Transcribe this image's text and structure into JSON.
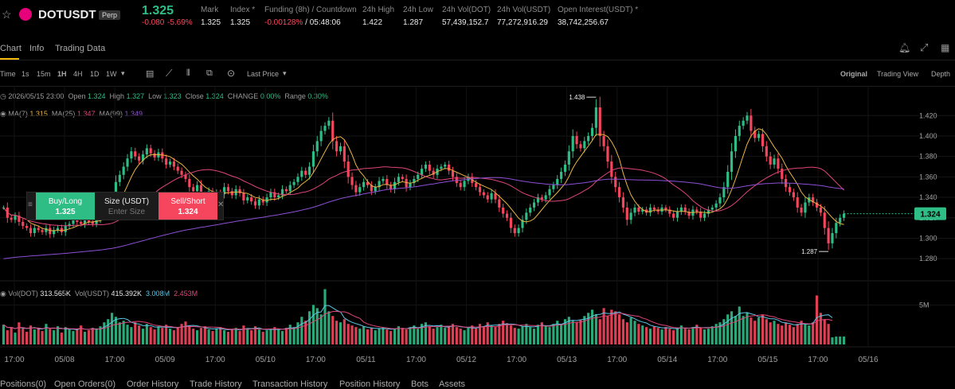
{
  "header": {
    "symbol": "DOTUSDT",
    "badge": "Perp",
    "price": "1.325",
    "change": "-0.080",
    "change_pct": "-5.69%",
    "stats": [
      {
        "label": "Mark",
        "value": "1.325"
      },
      {
        "label": "Index *",
        "value": "1.325"
      },
      {
        "label": "Funding (8h) / Countdown",
        "value": "-0.00128%",
        "value2": " / 05:48:06"
      },
      {
        "label": "24h High",
        "value": "1.422"
      },
      {
        "label": "24h Low",
        "value": "1.287"
      },
      {
        "label": "24h Vol(DOT)",
        "value": "57,439,152.7"
      },
      {
        "label": "24h Vol(USDT)",
        "value": "77,272,916.29"
      },
      {
        "label": "Open Interest(USDT) *",
        "value": "38,742,256.67"
      }
    ]
  },
  "tabs": [
    "Chart",
    "Info",
    "Trading Data"
  ],
  "toolbar": {
    "intervals": [
      "Time",
      "1s",
      "15m",
      "1H",
      "4H",
      "1D",
      "1W"
    ],
    "price_type": "Last Price",
    "views": [
      "Original",
      "Trading View",
      "Depth"
    ]
  },
  "legend": {
    "candle_date": "2026/05/15 23:00",
    "open_label": "Open",
    "open": "1.324",
    "high_label": "High",
    "high": "1.327",
    "low_label": "Low",
    "low": "1.323",
    "close_label": "Close",
    "close": "1.324",
    "change_label": "CHANGE",
    "change": "0.00%",
    "range_label": "Range",
    "range": "0.30%",
    "ma7_label": "MA(7)",
    "ma7": "1.315",
    "ma25_label": "MA(25)",
    "ma25": "1.347",
    "ma99_label": "MA(99)",
    "ma99": "1.349",
    "vol_dot_label": "Vol(DOT)",
    "vol_dot": "313.565K",
    "vol_usdt_label": "Vol(USDT)",
    "vol_usdt": "415.392K",
    "vol_ma1": "3.008M",
    "vol_ma2": "2.453M"
  },
  "trade_panel": {
    "buy_label": "Buy/Long",
    "buy_price": "1.325",
    "size_label": "Size (USDT)",
    "size_placeholder": "Enter Size",
    "sell_label": "Sell/Short",
    "sell_price": "1.324"
  },
  "bottom_tabs": [
    "Positions(0)",
    "Open Orders(0)",
    "Order History",
    "Trade History",
    "Transaction History",
    "Position History",
    "Bots",
    "Assets"
  ],
  "colors": {
    "up": "#2ebd85",
    "down": "#f6465d",
    "ma7": "#e8b443",
    "ma25": "#e0457b",
    "ma99": "#8e4fd6",
    "vol_ma1": "#5bc8e6",
    "vol_ma2": "#e0457b"
  },
  "chart_data": {
    "type": "candlestick",
    "interval": "1H",
    "price_axis": {
      "ticks": [
        "1.420",
        "1.400",
        "1.380",
        "1.360",
        "1.340",
        "1.320",
        "1.300",
        "1.280"
      ],
      "ylim": [
        1.27,
        1.435
      ]
    },
    "volume_axis": {
      "ticks": [
        "5M"
      ]
    },
    "x_ticks": [
      "17:00",
      "05/08",
      "17:00",
      "05/09",
      "17:00",
      "05/10",
      "17:00",
      "05/11",
      "17:00",
      "05/12",
      "17:00",
      "05/13",
      "17:00",
      "05/14",
      "17:00",
      "05/15",
      "17:00",
      "05/16"
    ],
    "last_price": "1.324",
    "annotations": [
      {
        "text": "1.438",
        "kind": "high"
      },
      {
        "text": "1.287",
        "kind": "low"
      }
    ],
    "close_series": [
      1.33,
      1.32,
      1.318,
      1.322,
      1.316,
      1.312,
      1.31,
      1.305,
      1.31,
      1.308,
      1.306,
      1.31,
      1.304,
      1.308,
      1.31,
      1.306,
      1.312,
      1.314,
      1.318,
      1.316,
      1.314,
      1.32,
      1.316,
      1.314,
      1.318,
      1.322,
      1.326,
      1.33,
      1.34,
      1.355,
      1.362,
      1.37,
      1.378,
      1.385,
      1.38,
      1.376,
      1.382,
      1.388,
      1.383,
      1.379,
      1.384,
      1.378,
      1.372,
      1.375,
      1.37,
      1.366,
      1.362,
      1.358,
      1.35,
      1.346,
      1.352,
      1.343,
      1.34,
      1.346,
      1.342,
      1.345,
      1.343,
      1.35,
      1.346,
      1.342,
      1.348,
      1.344,
      1.337,
      1.34,
      1.336,
      1.332,
      1.338,
      1.335,
      1.34,
      1.345,
      1.34,
      1.342,
      1.348,
      1.346,
      1.352,
      1.355,
      1.36,
      1.366,
      1.362,
      1.37,
      1.385,
      1.395,
      1.405,
      1.41,
      1.415,
      1.395,
      1.385,
      1.39,
      1.375,
      1.36,
      1.352,
      1.345,
      1.35,
      1.355,
      1.352,
      1.346,
      1.35,
      1.356,
      1.358,
      1.352,
      1.348,
      1.355,
      1.36,
      1.358,
      1.35,
      1.354,
      1.358,
      1.362,
      1.368,
      1.372,
      1.366,
      1.362,
      1.368,
      1.37,
      1.372,
      1.366,
      1.36,
      1.354,
      1.35,
      1.356,
      1.36,
      1.354,
      1.35,
      1.345,
      1.342,
      1.338,
      1.344,
      1.338,
      1.33,
      1.324,
      1.32,
      1.31,
      1.305,
      1.31,
      1.318,
      1.325,
      1.33,
      1.335,
      1.34,
      1.338,
      1.342,
      1.348,
      1.352,
      1.358,
      1.365,
      1.372,
      1.385,
      1.4,
      1.392,
      1.388,
      1.395,
      1.4,
      1.408,
      1.428,
      1.4,
      1.39,
      1.375,
      1.36,
      1.35,
      1.34,
      1.33,
      1.318,
      1.325,
      1.33,
      1.326,
      1.328,
      1.325,
      1.33,
      1.328,
      1.326,
      1.33,
      1.328,
      1.324,
      1.32,
      1.326,
      1.33,
      1.326,
      1.322,
      1.328,
      1.326,
      1.32,
      1.324,
      1.328,
      1.33,
      1.334,
      1.34,
      1.35,
      1.365,
      1.385,
      1.4,
      1.41,
      1.415,
      1.42,
      1.405,
      1.398,
      1.402,
      1.39,
      1.38,
      1.372,
      1.378,
      1.368,
      1.358,
      1.35,
      1.345,
      1.34,
      1.33,
      1.325,
      1.335,
      1.34,
      1.335,
      1.33,
      1.325,
      1.31,
      1.295,
      1.305,
      1.315,
      1.32,
      1.324
    ],
    "volume_series": [
      2.5,
      1.8,
      2.2,
      1.5,
      2.8,
      2.0,
      1.6,
      2.4,
      1.9,
      2.1,
      1.7,
      2.6,
      2.0,
      1.8,
      2.3,
      1.5,
      2.2,
      1.9,
      1.7,
      2.0,
      2.4,
      1.6,
      1.8,
      2.1,
      1.9,
      2.3,
      2.8,
      3.2,
      4.0,
      3.5,
      2.8,
      3.0,
      2.5,
      2.2,
      2.8,
      2.4,
      2.0,
      2.6,
      2.2,
      1.9,
      2.3,
      2.1,
      2.5,
      2.0,
      1.8,
      2.2,
      2.6,
      2.9,
      2.4,
      2.0,
      1.8,
      2.1,
      2.3,
      1.9,
      1.7,
      2.0,
      2.2,
      1.8,
      1.6,
      1.9,
      2.1,
      1.7,
      2.4,
      2.0,
      1.8,
      2.3,
      1.9,
      1.6,
      1.8,
      2.0,
      2.2,
      1.9,
      1.7,
      2.1,
      2.5,
      2.2,
      2.8,
      3.5,
      3.0,
      4.2,
      5.0,
      4.6,
      3.8,
      7.0,
      4.2,
      3.6,
      3.0,
      2.8,
      3.2,
      2.6,
      2.4,
      2.2,
      2.0,
      2.3,
      1.9,
      2.1,
      1.8,
      2.0,
      2.2,
      1.9,
      1.7,
      2.0,
      2.3,
      2.1,
      1.9,
      2.2,
      2.4,
      2.0,
      2.6,
      2.8,
      2.3,
      2.0,
      2.2,
      2.5,
      2.1,
      2.3,
      2.6,
      2.2,
      2.0,
      1.8,
      2.1,
      2.4,
      2.0,
      2.6,
      2.3,
      2.8,
      2.4,
      2.2,
      2.6,
      3.0,
      2.7,
      2.4,
      2.1,
      2.0,
      2.3,
      2.6,
      2.2,
      2.0,
      2.5,
      2.8,
      2.4,
      2.2,
      2.6,
      3.0,
      2.6,
      3.2,
      3.5,
      3.0,
      2.8,
      3.1,
      3.6,
      4.0,
      4.4,
      3.8,
      3.2,
      4.6,
      3.6,
      4.4,
      4.2,
      3.8,
      3.2,
      2.8,
      3.4,
      3.0,
      2.6,
      2.4,
      2.2,
      2.0,
      2.3,
      2.1,
      1.9,
      2.2,
      2.0,
      1.8,
      2.1,
      2.4,
      2.0,
      1.9,
      2.2,
      2.5,
      2.1,
      1.9,
      2.0,
      2.3,
      2.6,
      2.8,
      3.2,
      3.8,
      4.2,
      3.6,
      4.8,
      3.6,
      4.0,
      3.4,
      3.0,
      3.4,
      3.8,
      3.2,
      2.8,
      3.0,
      2.6,
      2.4,
      2.8,
      2.5,
      2.2,
      2.6,
      3.0,
      2.6,
      2.4,
      2.8,
      6.2,
      4.0,
      3.2,
      2.6,
      0.9
    ]
  }
}
